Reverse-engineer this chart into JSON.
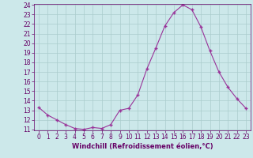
{
  "x": [
    0,
    1,
    2,
    3,
    4,
    5,
    6,
    7,
    8,
    9,
    10,
    11,
    12,
    13,
    14,
    15,
    16,
    17,
    18,
    19,
    20,
    21,
    22,
    23
  ],
  "y": [
    13.3,
    12.5,
    12.0,
    11.5,
    11.1,
    11.0,
    11.2,
    11.1,
    11.5,
    13.0,
    13.2,
    14.6,
    17.3,
    19.5,
    21.8,
    23.2,
    24.0,
    23.5,
    21.7,
    19.2,
    17.0,
    15.4,
    14.2,
    13.2
  ],
  "line_color": "#993399",
  "marker": "+",
  "bg_color": "#cce8ea",
  "grid_color": "#aacccc",
  "xlabel": "Windchill (Refroidissement éolien,°C)",
  "xlabel_color": "#660066",
  "tick_color": "#660066",
  "ylim": [
    11,
    24
  ],
  "xlim": [
    -0.5,
    23.5
  ],
  "yticks": [
    11,
    12,
    13,
    14,
    15,
    16,
    17,
    18,
    19,
    20,
    21,
    22,
    23,
    24
  ],
  "xticks": [
    0,
    1,
    2,
    3,
    4,
    5,
    6,
    7,
    8,
    9,
    10,
    11,
    12,
    13,
    14,
    15,
    16,
    17,
    18,
    19,
    20,
    21,
    22,
    23
  ],
  "tick_fontsize": 5.5,
  "xlabel_fontsize": 6.0
}
